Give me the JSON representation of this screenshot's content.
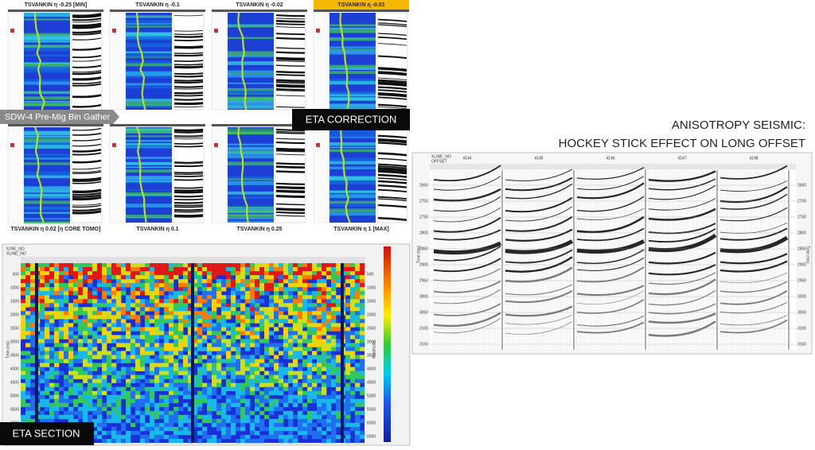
{
  "gathers": [
    {
      "title": "TSVANKIN η -0.25 [MIN]"
    },
    {
      "title": "TSVANKIN η -0.1"
    },
    {
      "title": "TSVANKIN η -0.02"
    },
    {
      "title": "TSVANKIN η -0.01",
      "highlighted": true
    },
    {
      "title": "TSVANKIN η 0.02 [η CORE TOMO]"
    },
    {
      "title": "TSVANKIN η 0.1"
    },
    {
      "title": "TSVANKIN η 0.25"
    },
    {
      "title": "TSVANKIN η 1 [MAX]"
    }
  ],
  "gather_label": "SDW-4 Pre-Mig Bin Gather",
  "correction_label": "ETA CORRECTION",
  "heading": [
    "ANISOTROPY SEISMIC:",
    "HOCKEY STICK EFFECT ON LONG OFFSET"
  ],
  "hockey": {
    "xline_label": "XLINE_NO",
    "offset_label": "OFFSET",
    "time_label": "Time (ms)",
    "xlines": [
      "4144",
      "4145",
      "4146",
      "4147",
      "4148"
    ],
    "times": [
      "2650",
      "2700",
      "2750",
      "2800",
      "2850",
      "2900",
      "2950",
      "3000",
      "3050",
      "3100",
      "3150"
    ]
  },
  "eta_section": {
    "iline_label": "ILINE_NO",
    "xline_label": "XLINE_NO",
    "time_label": "Time (ms)",
    "amplitude_label": "Amplitude",
    "times": [
      "500",
      "1000",
      "1500",
      "2000",
      "2500",
      "3000",
      "3500",
      "4000",
      "4500",
      "5000",
      "5500",
      "6000",
      "6500"
    ],
    "label": "ETA SECTION"
  }
}
